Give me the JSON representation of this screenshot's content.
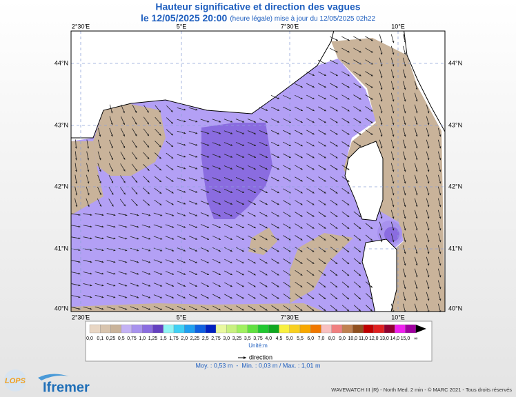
{
  "header": {
    "title": "Hauteur significative et direction des vagues",
    "date": "le 12/05/2025 20:00",
    "update": "(heure légale) mise à jour du 12/05/2025 02h22"
  },
  "map": {
    "top_labels": [
      "2°30'E",
      "5°E",
      "7°30'E",
      "10°E"
    ],
    "bottom_labels": [
      "2°30'E",
      "5°E",
      "7°30'E",
      "10°E"
    ],
    "left_labels": [
      "44°N",
      "43°N",
      "42°N",
      "41°N",
      "40°N"
    ],
    "right_labels": [
      "44°N",
      "43°N",
      "42°N",
      "41°N",
      "40°N"
    ]
  },
  "colorbar": {
    "bins": [
      {
        "label": "0,0",
        "color": "#e8d6c4"
      },
      {
        "label": "0,1",
        "color": "#d8c4ae"
      },
      {
        "label": "0,25",
        "color": "#c9b39a"
      },
      {
        "label": "0,5",
        "color": "#c4b2f4"
      },
      {
        "label": "0,75",
        "color": "#a892ee"
      },
      {
        "label": "1,0",
        "color": "#8a6ce0"
      },
      {
        "label": "1,25",
        "color": "#6440c0"
      },
      {
        "label": "1,5",
        "color": "#90f4f4"
      },
      {
        "label": "1,75",
        "color": "#40d0f4"
      },
      {
        "label": "2,0",
        "color": "#20a0f0"
      },
      {
        "label": "2,25",
        "color": "#1060e0"
      },
      {
        "label": "2,5",
        "color": "#0020c0"
      },
      {
        "label": "2,75",
        "color": "#e8f8a0"
      },
      {
        "label": "3,0",
        "color": "#c8f080"
      },
      {
        "label": "3,25",
        "color": "#a0f060"
      },
      {
        "label": "3,5",
        "color": "#60e040"
      },
      {
        "label": "3,75",
        "color": "#20c830"
      },
      {
        "label": "4,0",
        "color": "#10a820"
      },
      {
        "label": "4,5",
        "color": "#f8f040"
      },
      {
        "label": "5,0",
        "color": "#f8d020"
      },
      {
        "label": "5,5",
        "color": "#f8a800"
      },
      {
        "label": "6,0",
        "color": "#f07800"
      },
      {
        "label": "7,0",
        "color": "#f8c0c0"
      },
      {
        "label": "8,0",
        "color": "#f08080"
      },
      {
        "label": "9,0",
        "color": "#c08050"
      },
      {
        "label": "10,0",
        "color": "#905020"
      },
      {
        "label": "11,0",
        "color": "#c00000"
      },
      {
        "label": "12,0",
        "color": "#e02020"
      },
      {
        "label": "13,0",
        "color": "#900030"
      },
      {
        "label": "14,0",
        "color": "#f020f0"
      },
      {
        "label": "15,0",
        "color": "#a000a0"
      },
      {
        "label": "∞",
        "color": "#000000"
      }
    ],
    "unit": "Unité:m",
    "direction": "direction"
  },
  "stats": "Moy. : 0,53 m  -  Min. : 0,03 m / Max. : 1,01 m",
  "footer": {
    "credits": "WAVEWATCH III (R) - North Med. 2 min - © MARC 2021 - Tous droits réservés",
    "logo_lops": "LOPS",
    "logo_ifremer": "Ifremer"
  }
}
